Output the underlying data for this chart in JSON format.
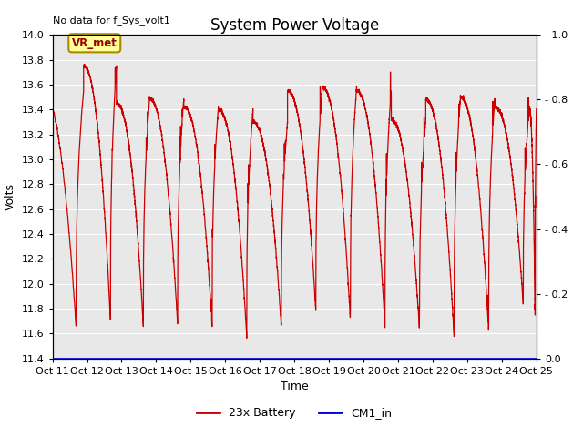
{
  "title": "System Power Voltage",
  "top_left_text": "No data for f_Sys_volt1",
  "ylabel_left": "Volts",
  "xlabel": "Time",
  "ylim_left": [
    11.4,
    14.0
  ],
  "ylim_right": [
    0.0,
    1.0
  ],
  "xtick_labels": [
    "Oct 11",
    "Oct 12",
    "Oct 13",
    "Oct 14",
    "Oct 15",
    "Oct 16",
    "Oct 17",
    "Oct 18",
    "Oct 19",
    "Oct 20",
    "Oct 21",
    "Oct 22",
    "Oct 23",
    "Oct 24",
    "Oct 25"
  ],
  "yticks_left": [
    11.4,
    11.6,
    11.8,
    12.0,
    12.2,
    12.4,
    12.6,
    12.8,
    13.0,
    13.2,
    13.4,
    13.6,
    13.8,
    14.0
  ],
  "yticks_right": [
    0.0,
    0.2,
    0.4,
    0.6,
    0.8,
    1.0
  ],
  "legend": [
    {
      "label": "23x Battery",
      "color": "#cc0000"
    },
    {
      "label": "CM1_in",
      "color": "#0000cc"
    }
  ],
  "vr_met_label": "VR_met",
  "background_color": "#e8e8e8",
  "line_color": "#cc0000",
  "blue_line_color": "#0000cc",
  "title_fontsize": 12,
  "axis_label_fontsize": 9,
  "tick_fontsize": 8,
  "figsize": [
    6.4,
    4.8
  ],
  "dpi": 100,
  "cycle_peaks": [
    13.56,
    13.75,
    13.45,
    13.49,
    13.42,
    13.4,
    13.3,
    13.55,
    13.58,
    13.55,
    13.32,
    13.48,
    13.5,
    13.42,
    13.4
  ],
  "cycle_troughs": [
    11.65,
    11.7,
    11.65,
    11.67,
    11.65,
    11.57,
    11.65,
    11.77,
    11.7,
    11.65,
    11.62,
    11.57,
    11.62,
    11.83,
    11.75
  ],
  "cycle_boundaries": [
    0.0,
    0.9,
    1.85,
    2.8,
    3.8,
    4.8,
    5.8,
    6.8,
    7.8,
    8.8,
    9.8,
    10.8,
    11.8,
    12.8,
    13.8,
    14.0
  ]
}
